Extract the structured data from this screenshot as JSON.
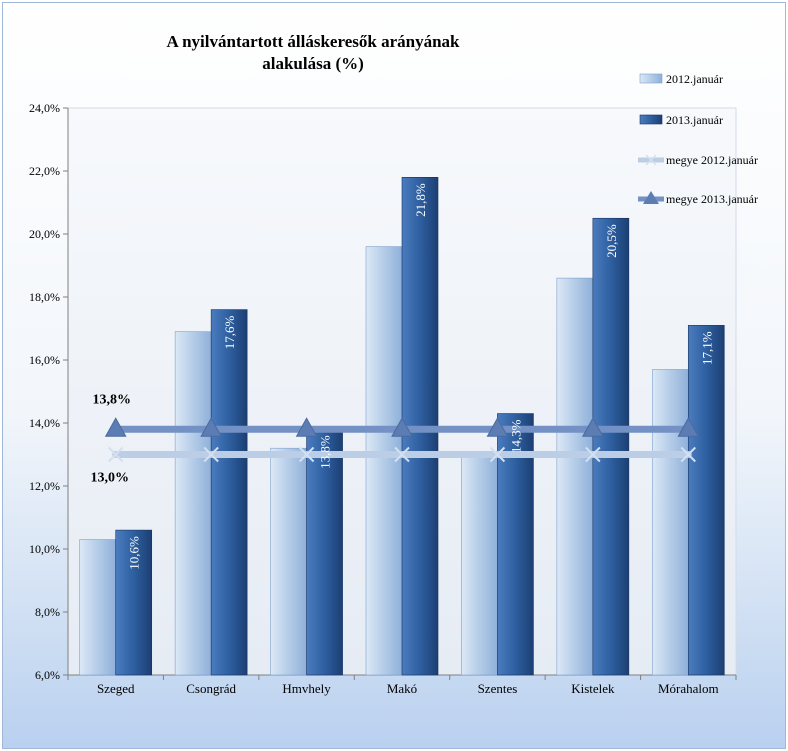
{
  "chart_data": {
    "type": "bar",
    "title": "A nyilvántartott álláskeresők arányának alakulása (%)",
    "categories": [
      "Szeged",
      "Csongrád",
      "Hmvhely",
      "Makó",
      "Szentes",
      "Kistelek",
      "Mórahalom"
    ],
    "series": [
      {
        "name": "2012.január",
        "type": "bar",
        "values": [
          10.3,
          16.9,
          13.2,
          19.6,
          12.9,
          18.6,
          15.7
        ]
      },
      {
        "name": "2013.január",
        "type": "bar",
        "values": [
          10.6,
          17.6,
          13.8,
          21.8,
          14.3,
          20.5,
          17.1
        ],
        "data_labels": [
          "10,6%",
          "17,6%",
          "13,8%",
          "21,8%",
          "14,3%",
          "20,5%",
          "17,1%"
        ]
      },
      {
        "name": "megye 2012.január",
        "type": "line",
        "values": [
          13.0,
          13.0,
          13.0,
          13.0,
          13.0,
          13.0,
          13.0
        ],
        "label": "13,0%"
      },
      {
        "name": "megye 2013.január",
        "type": "line",
        "values": [
          13.8,
          13.8,
          13.8,
          13.8,
          13.8,
          13.8,
          13.8
        ],
        "label": "13,8%"
      }
    ],
    "ylim": [
      6,
      24
    ],
    "yticks": [
      "6,0%",
      "8,0%",
      "10,0%",
      "12,0%",
      "14,0%",
      "16,0%",
      "18,0%",
      "20,0%",
      "22,0%",
      "24,0%"
    ],
    "ytick_values": [
      6,
      8,
      10,
      12,
      14,
      16,
      18,
      20,
      22,
      24
    ],
    "legend_position": "right",
    "grid": false,
    "colors": {
      "bar_2012": "#b8cfe9",
      "bar_2012_dark": "#8fb0d9",
      "bar_2013": "#2e5fa0",
      "bar_2013_dark": "#1c3f73",
      "line_2012": "#b9cbe6",
      "line_2013": "#6f8fc4",
      "marker_2013": "#5b7db4"
    }
  }
}
